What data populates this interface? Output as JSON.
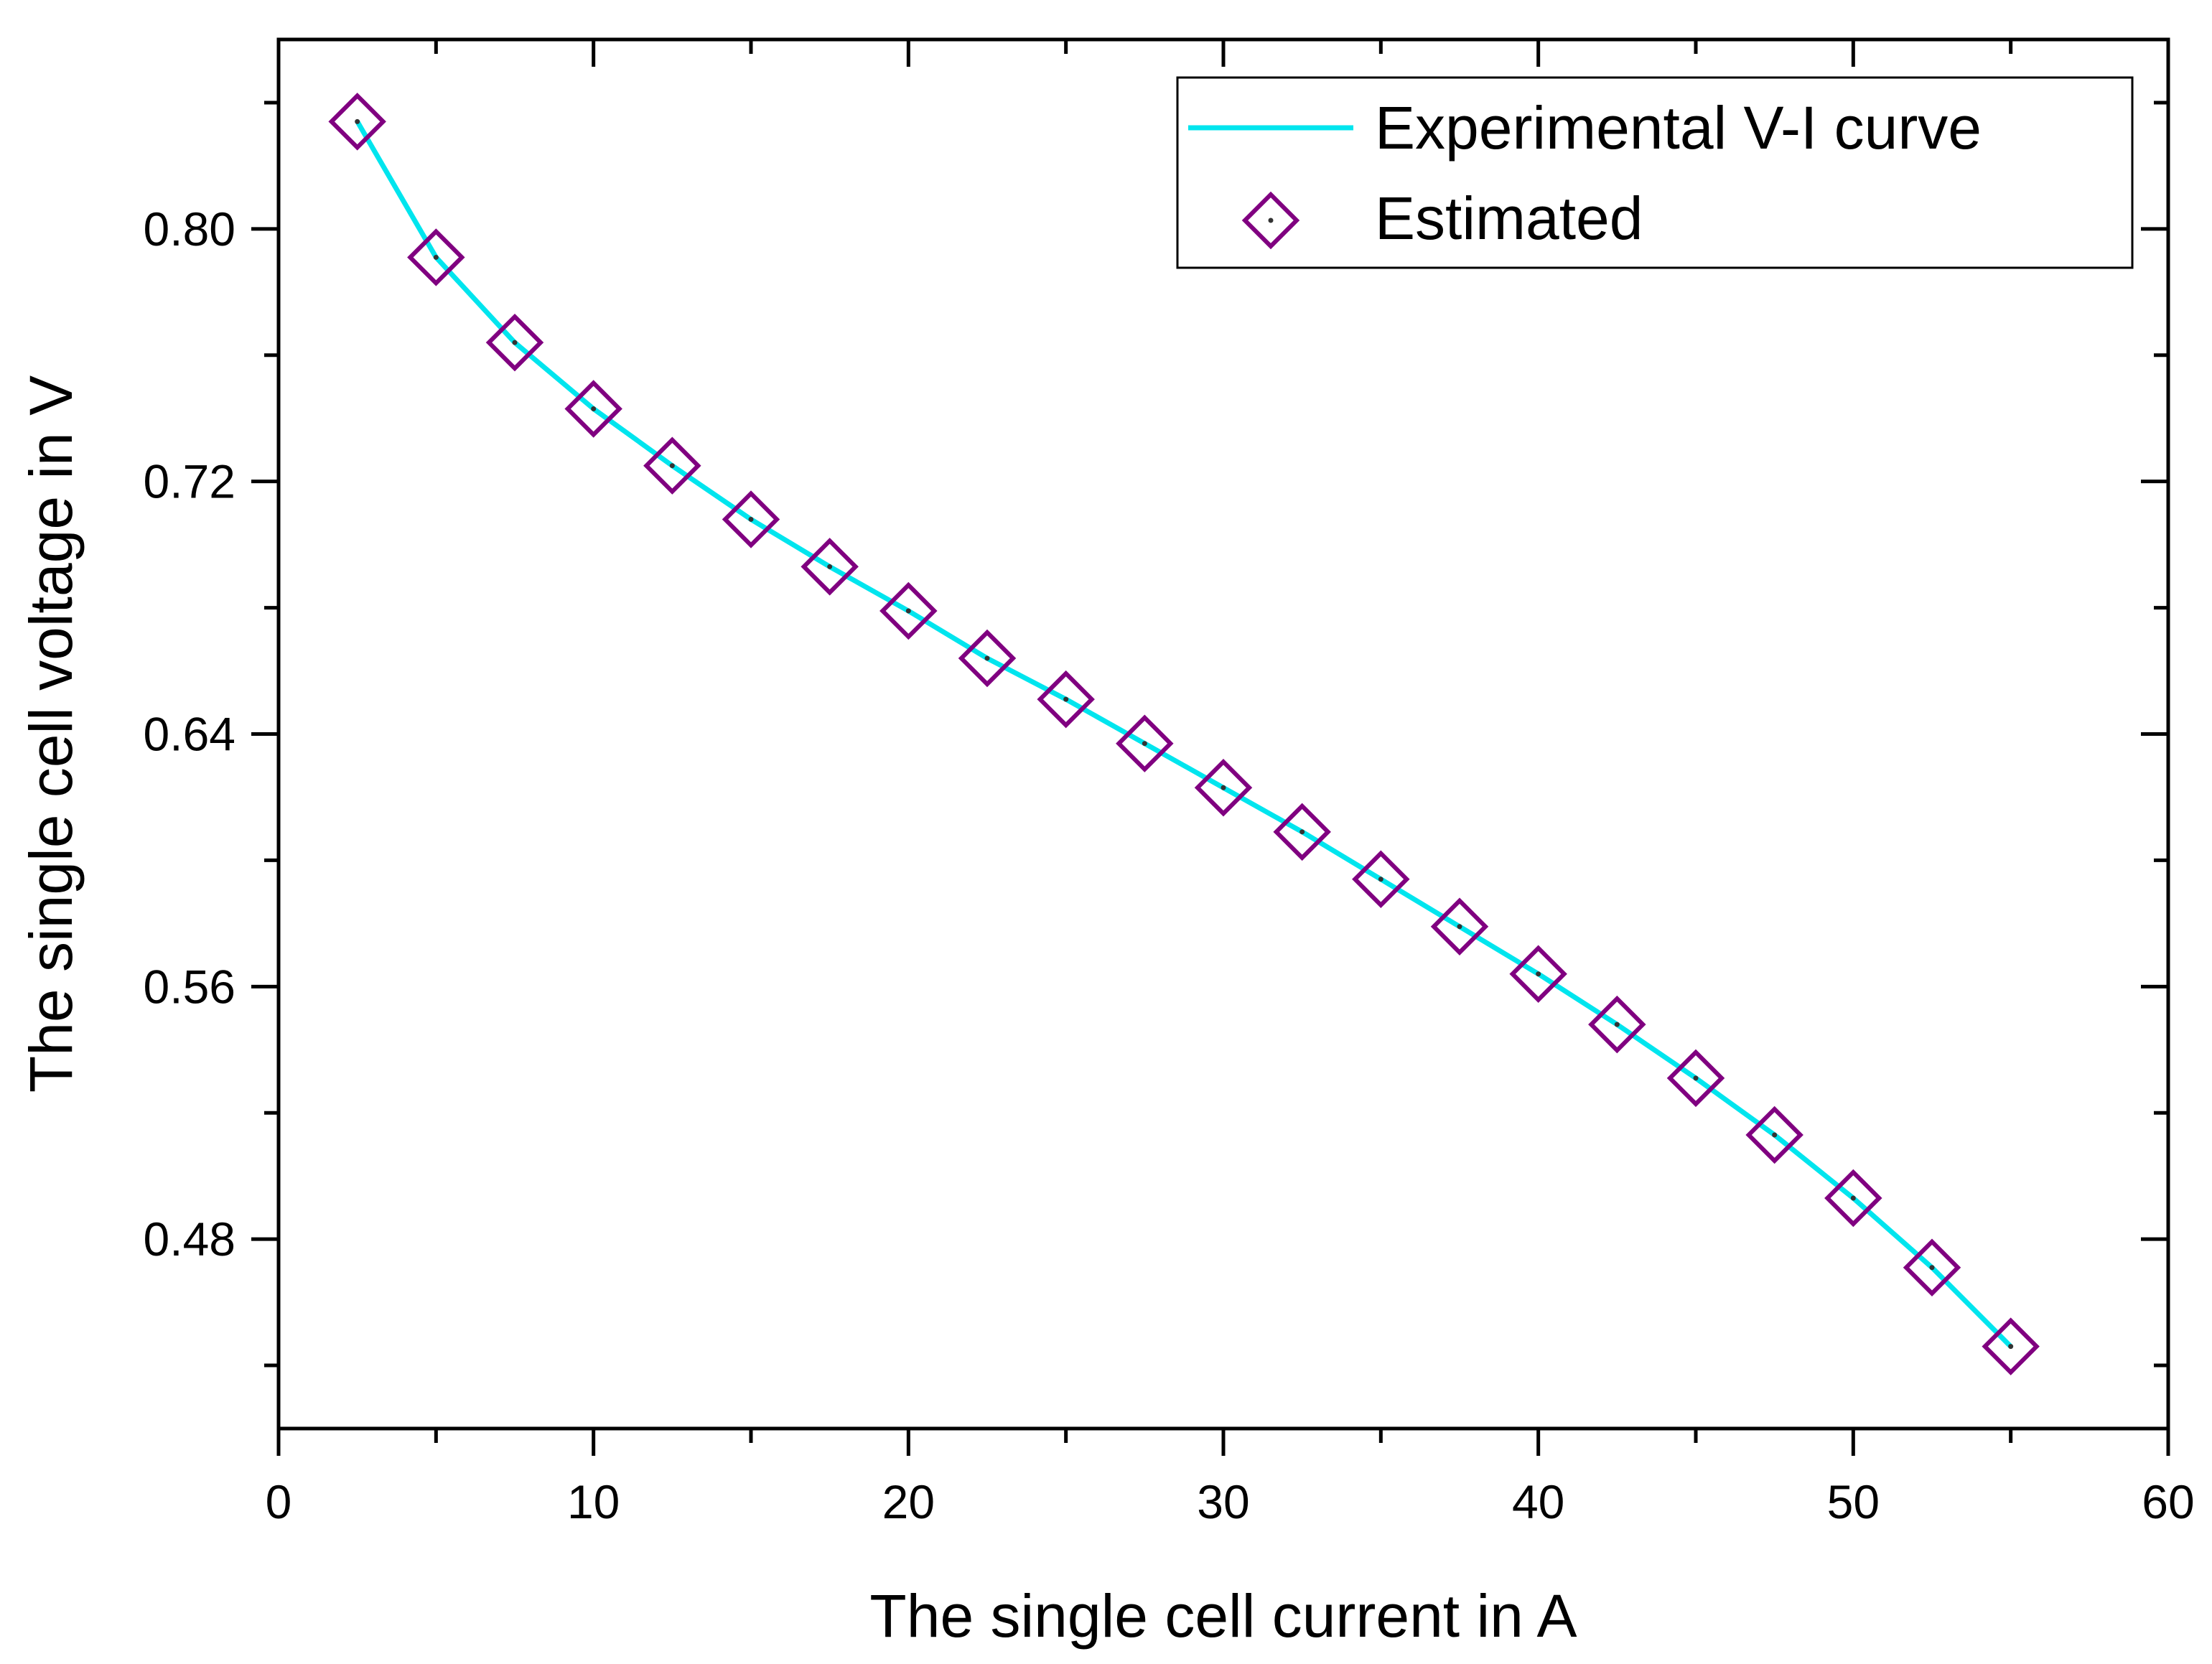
{
  "colors": {
    "line": "#00e5ee",
    "marker": "#800080",
    "axis": "#000000",
    "background": "#ffffff"
  },
  "chart_data": {
    "type": "line",
    "title": "",
    "xlabel": "The single cell current in A",
    "ylabel": "The single cell voltage in V",
    "xlim": [
      0,
      60
    ],
    "ylim": [
      0.42,
      0.86
    ],
    "xticks": [
      0,
      10,
      20,
      30,
      40,
      50,
      60
    ],
    "xtick_labels": [
      "0",
      "10",
      "20",
      "30",
      "40",
      "50",
      "60"
    ],
    "yticks": [
      0.48,
      0.56,
      0.64,
      0.72,
      0.8
    ],
    "ytick_labels": [
      "0.48",
      "0.56",
      "0.64",
      "0.72",
      "0.80"
    ],
    "grid": false,
    "legend_position": "top-right",
    "series": [
      {
        "name": "Experimental V-I curve",
        "style": "line",
        "x": [
          2.5,
          5,
          7.5,
          10,
          12.5,
          15,
          17.5,
          20,
          22.5,
          25,
          27.5,
          30,
          32.5,
          35,
          37.5,
          40,
          42.5,
          45,
          47.5,
          50,
          52.5,
          55
        ],
        "values": [
          0.834,
          0.791,
          0.764,
          0.743,
          0.725,
          0.708,
          0.693,
          0.679,
          0.664,
          0.651,
          0.637,
          0.623,
          0.609,
          0.594,
          0.579,
          0.564,
          0.548,
          0.531,
          0.513,
          0.493,
          0.471,
          0.446
        ]
      },
      {
        "name": "Estimated",
        "style": "marker-diamond",
        "x": [
          2.5,
          5,
          7.5,
          10,
          12.5,
          15,
          17.5,
          20,
          22.5,
          25,
          27.5,
          30,
          32.5,
          35,
          37.5,
          40,
          42.5,
          45,
          47.5,
          50,
          52.5,
          55
        ],
        "values": [
          0.834,
          0.791,
          0.764,
          0.743,
          0.725,
          0.708,
          0.693,
          0.679,
          0.664,
          0.651,
          0.637,
          0.623,
          0.609,
          0.594,
          0.579,
          0.564,
          0.548,
          0.531,
          0.513,
          0.493,
          0.471,
          0.446
        ]
      }
    ]
  }
}
